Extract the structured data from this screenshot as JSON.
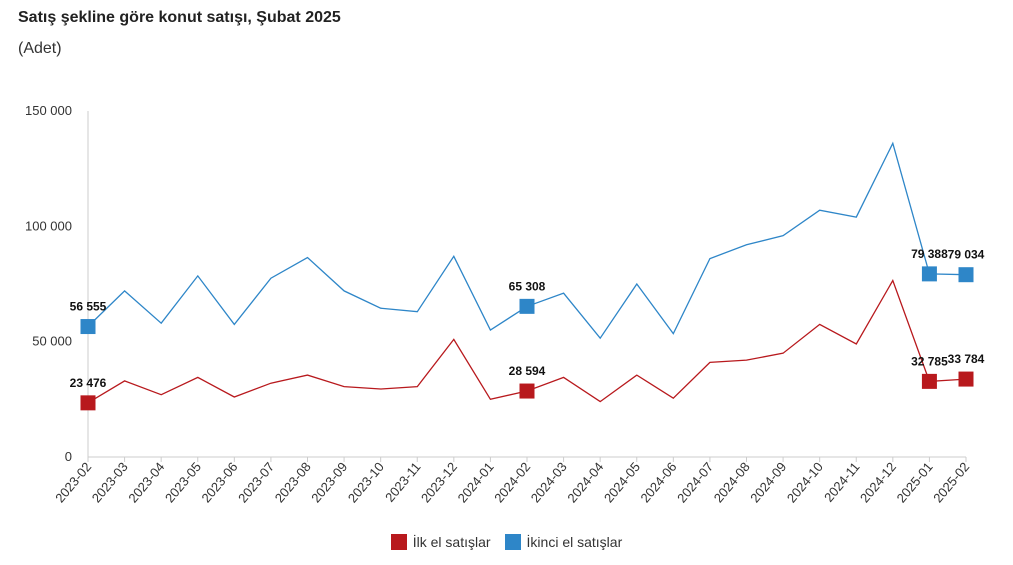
{
  "chart_data": {
    "type": "line",
    "title": "Satış şekline göre konut satışı, Şubat 2025",
    "subtitle": "(Adet)",
    "categories": [
      "2023-02",
      "2023-03",
      "2023-04",
      "2023-05",
      "2023-06",
      "2023-07",
      "2023-08",
      "2023-09",
      "2023-10",
      "2023-11",
      "2023-12",
      "2024-01",
      "2024-02",
      "2024-03",
      "2024-04",
      "2024-05",
      "2024-06",
      "2024-07",
      "2024-08",
      "2024-09",
      "2024-10",
      "2024-11",
      "2024-12",
      "2025-01",
      "2025-02"
    ],
    "series": [
      {
        "name": "İkinci el satışlar",
        "color": "#2e86c8",
        "values": [
          56555,
          72000,
          58000,
          78500,
          57500,
          77500,
          86500,
          72000,
          64500,
          63000,
          87000,
          55000,
          65308,
          71000,
          51500,
          75000,
          53500,
          86000,
          92000,
          96000,
          107000,
          104000,
          136000,
          79388,
          79034
        ],
        "labels": {
          "0": "56 555",
          "12": "65 308",
          "23": "79 388",
          "24": "79 034"
        }
      },
      {
        "name": "İlk el satışlar",
        "color": "#b8191d",
        "values": [
          23476,
          33000,
          27000,
          34500,
          26000,
          32000,
          35500,
          30500,
          29500,
          30500,
          51000,
          25000,
          28594,
          34500,
          24000,
          35500,
          25500,
          41000,
          42000,
          45000,
          57500,
          49000,
          76500,
          32785,
          33784
        ],
        "labels": {
          "0": "23 476",
          "12": "28 594",
          "23": "32 785",
          "24": "33 784"
        }
      }
    ],
    "y_ticks": [
      0,
      50000,
      100000,
      150000
    ],
    "y_tick_labels": [
      "0",
      "50 000",
      "100 000",
      "150 000"
    ],
    "ylim": [
      0,
      150000
    ],
    "grid": false,
    "legend_position": "bottom-center",
    "legend": [
      {
        "name": "İlk el satışlar",
        "color": "#b8191d"
      },
      {
        "name": "İkinci el satışlar",
        "color": "#2e86c8"
      }
    ]
  }
}
